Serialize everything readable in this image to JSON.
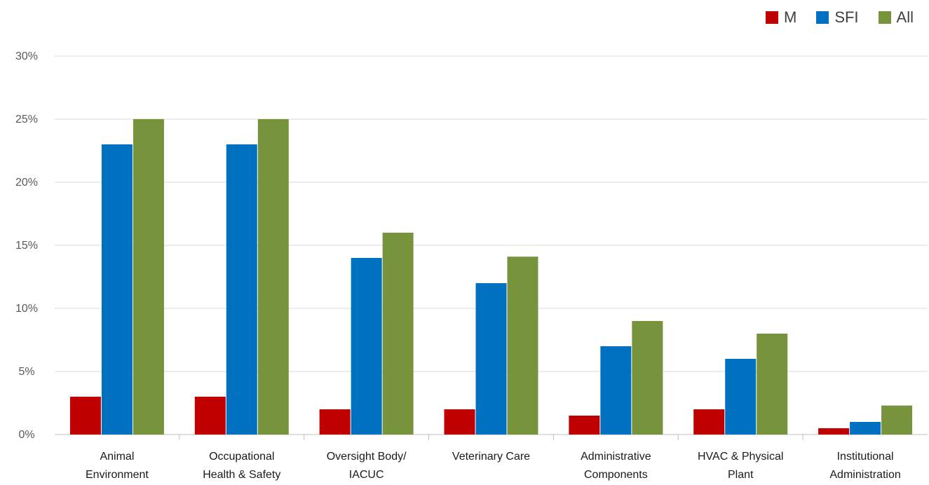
{
  "chart_data": {
    "type": "bar",
    "title": "",
    "xlabel": "",
    "ylabel": "",
    "categories": [
      [
        "Animal",
        "Environment"
      ],
      [
        "Occupational",
        "Health & Safety"
      ],
      [
        "Oversight Body/",
        "IACUC"
      ],
      [
        "Veterinary Care"
      ],
      [
        "Administrative",
        "Components"
      ],
      [
        "HVAC & Physical",
        "Plant"
      ],
      [
        "Institutional",
        "Administration"
      ]
    ],
    "series": [
      {
        "name": "M",
        "color": "#c00000",
        "values": [
          3,
          3,
          2,
          2,
          1.5,
          2,
          0.5
        ]
      },
      {
        "name": "SFI",
        "color": "#0070c0",
        "values": [
          23,
          23,
          14,
          12,
          7,
          6,
          1
        ]
      },
      {
        "name": "All",
        "color": "#77933c",
        "values": [
          25,
          25,
          16,
          14.1,
          9,
          8,
          2.3
        ]
      }
    ],
    "ylim": [
      0,
      30
    ],
    "y_ticks": [
      "0%",
      "5%",
      "10%",
      "15%",
      "20%",
      "25%",
      "30%"
    ],
    "grid": true,
    "legend_position": "top-right"
  }
}
